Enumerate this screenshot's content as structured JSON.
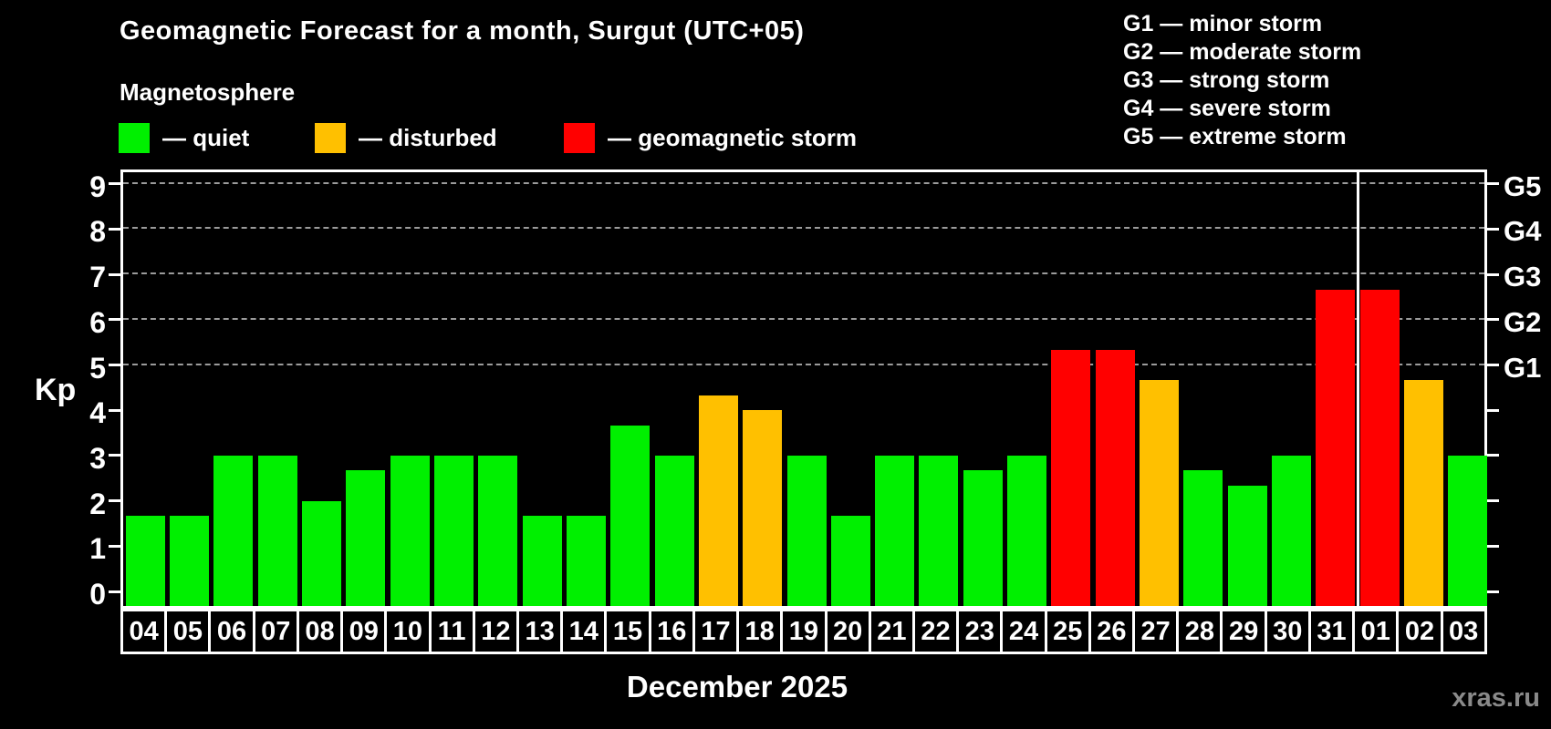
{
  "title": "Geomagnetic Forecast for a month, Surgut (UTC+05)",
  "legend": {
    "title": "Magnetosphere",
    "items": [
      {
        "key": "quiet",
        "label": "— quiet",
        "color": "#00f000"
      },
      {
        "key": "disturbed",
        "label": "— disturbed",
        "color": "#ffc000"
      },
      {
        "key": "storm",
        "label": "— geomagnetic storm",
        "color": "#ff0000"
      }
    ]
  },
  "g_legend": [
    "G1 — minor storm",
    "G2 — moderate storm",
    "G3 — strong storm",
    "G4 — severe storm",
    "G5 — extreme storm"
  ],
  "watermark": "xras.ru",
  "chart_data": {
    "type": "bar",
    "title": "Geomagnetic Forecast for a month, Surgut (UTC+05)",
    "xlabel": "December 2025",
    "ylabel": "Kp",
    "ylim": [
      0,
      9
    ],
    "yticks": [
      0,
      1,
      2,
      3,
      4,
      5,
      6,
      7,
      8,
      9
    ],
    "gridlines_at_kp": [
      5,
      6,
      7,
      8,
      9
    ],
    "grid": "dashed horizontal at storm levels only",
    "legend_position": "top",
    "right_axis": [
      {
        "label": "G1",
        "kp": 5
      },
      {
        "label": "G2",
        "kp": 6
      },
      {
        "label": "G3",
        "kp": 7
      },
      {
        "label": "G4",
        "kp": 8
      },
      {
        "label": "G5",
        "kp": 9
      }
    ],
    "month_boundary_after_index": 27,
    "bars": [
      {
        "day": "04",
        "kp": 1.67,
        "status": "quiet"
      },
      {
        "day": "05",
        "kp": 1.67,
        "status": "quiet"
      },
      {
        "day": "06",
        "kp": 3.0,
        "status": "quiet"
      },
      {
        "day": "07",
        "kp": 3.0,
        "status": "quiet"
      },
      {
        "day": "08",
        "kp": 2.0,
        "status": "quiet"
      },
      {
        "day": "09",
        "kp": 2.67,
        "status": "quiet"
      },
      {
        "day": "10",
        "kp": 3.0,
        "status": "quiet"
      },
      {
        "day": "11",
        "kp": 3.0,
        "status": "quiet"
      },
      {
        "day": "12",
        "kp": 3.0,
        "status": "quiet"
      },
      {
        "day": "13",
        "kp": 1.67,
        "status": "quiet"
      },
      {
        "day": "14",
        "kp": 1.67,
        "status": "quiet"
      },
      {
        "day": "15",
        "kp": 3.67,
        "status": "quiet"
      },
      {
        "day": "16",
        "kp": 3.0,
        "status": "quiet"
      },
      {
        "day": "17",
        "kp": 4.33,
        "status": "disturbed"
      },
      {
        "day": "18",
        "kp": 4.0,
        "status": "disturbed"
      },
      {
        "day": "19",
        "kp": 3.0,
        "status": "quiet"
      },
      {
        "day": "20",
        "kp": 1.67,
        "status": "quiet"
      },
      {
        "day": "21",
        "kp": 3.0,
        "status": "quiet"
      },
      {
        "day": "22",
        "kp": 3.0,
        "status": "quiet"
      },
      {
        "day": "23",
        "kp": 2.67,
        "status": "quiet"
      },
      {
        "day": "24",
        "kp": 3.0,
        "status": "quiet"
      },
      {
        "day": "25",
        "kp": 5.33,
        "status": "storm"
      },
      {
        "day": "26",
        "kp": 5.33,
        "status": "storm"
      },
      {
        "day": "27",
        "kp": 4.67,
        "status": "disturbed"
      },
      {
        "day": "28",
        "kp": 2.67,
        "status": "quiet"
      },
      {
        "day": "29",
        "kp": 2.33,
        "status": "quiet"
      },
      {
        "day": "30",
        "kp": 3.0,
        "status": "quiet"
      },
      {
        "day": "31",
        "kp": 6.67,
        "status": "storm"
      },
      {
        "day": "01",
        "kp": 6.67,
        "status": "storm"
      },
      {
        "day": "02",
        "kp": 4.67,
        "status": "disturbed"
      },
      {
        "day": "03",
        "kp": 3.0,
        "status": "quiet"
      }
    ]
  }
}
